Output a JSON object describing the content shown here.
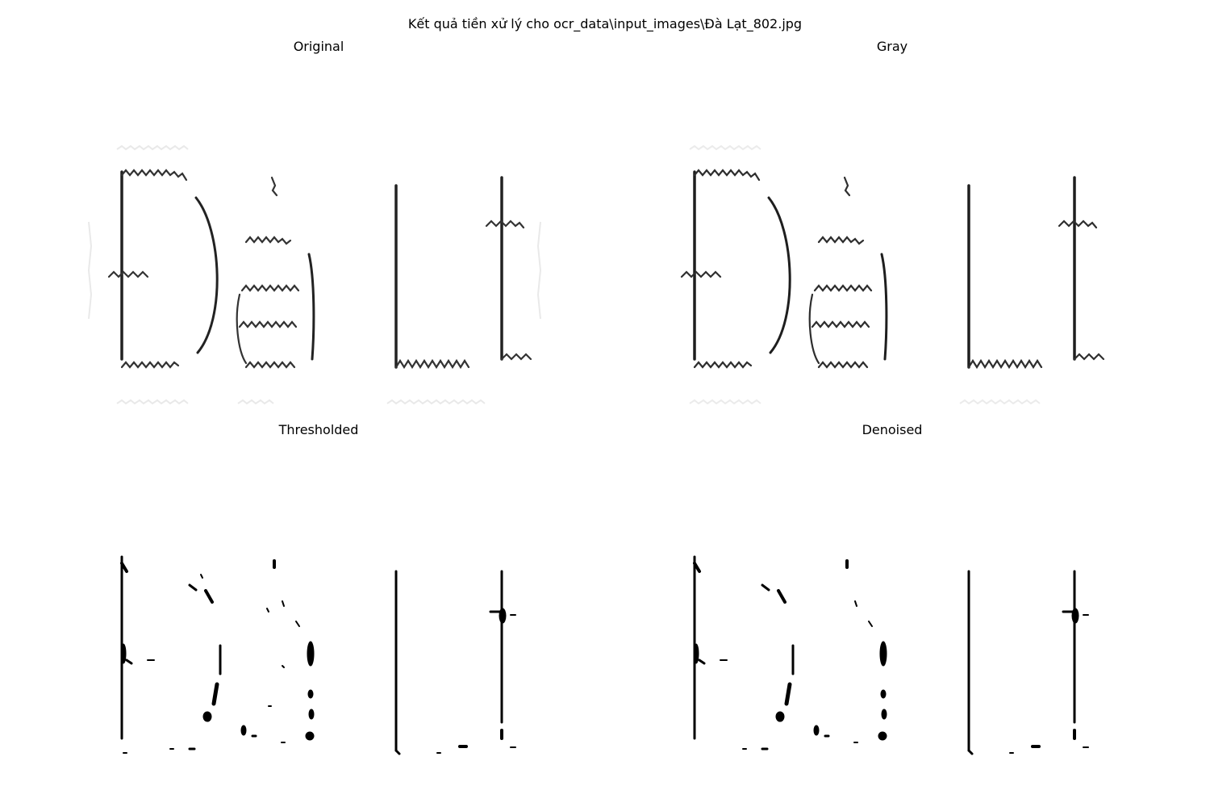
{
  "figure": {
    "title": "Kết quả tiền xử lý cho ocr_data\\input_images\\Đà Lạt_802.jpg"
  },
  "panels": [
    {
      "id": "original",
      "title": "Original"
    },
    {
      "id": "gray",
      "title": "Gray"
    },
    {
      "id": "thresholded",
      "title": "Thresholded"
    },
    {
      "id": "denoised",
      "title": "Denoised"
    }
  ],
  "image_content": {
    "rendered_word": "Đà Lt"
  }
}
